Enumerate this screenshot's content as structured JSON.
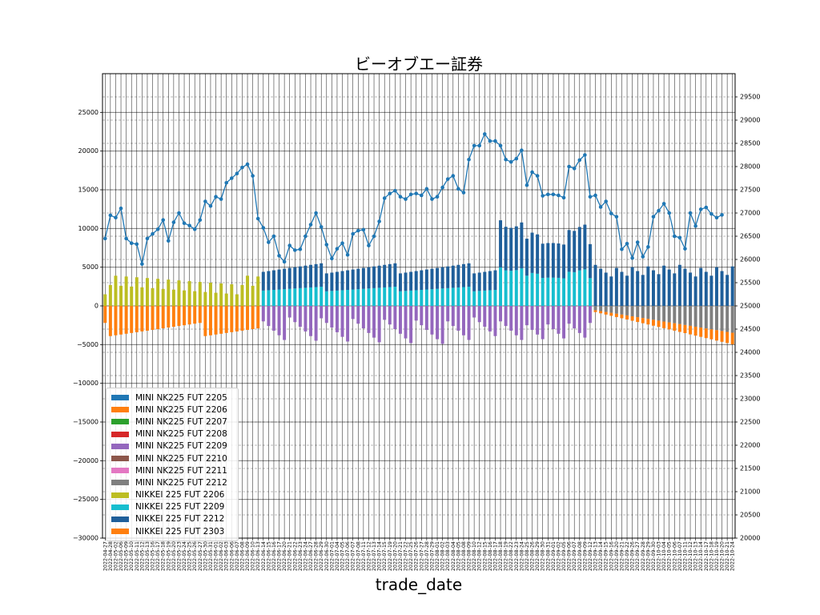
{
  "title": "ビーオブエー証券",
  "chart_data": {
    "type": "bar",
    "title": "ビーオブエー証券",
    "xlabel": "trade_date",
    "ylabel": "",
    "ylim": [
      -30000,
      30000
    ],
    "y2lim": [
      20000,
      30000
    ],
    "grid": true,
    "legend_position": "lower-left",
    "stacked": true,
    "yticks": [
      -30000,
      -25000,
      -20000,
      -15000,
      -10000,
      -5000,
      0,
      5000,
      10000,
      15000,
      20000,
      25000
    ],
    "y2ticks": [
      20000,
      20500,
      21000,
      21500,
      22000,
      22500,
      23000,
      23500,
      24000,
      24500,
      25000,
      25500,
      26000,
      26500,
      27000,
      27500,
      28000,
      28500,
      29000,
      29500
    ],
    "x_start_date": "2022-04-27",
    "x_end_date": "2022-10-24",
    "series": [
      {
        "name": "MINI NK225 FUT 2205",
        "color": "#1f77b4"
      },
      {
        "name": "MINI NK225 FUT 2206",
        "color": "#ff7f0e"
      },
      {
        "name": "MINI NK225 FUT 2207",
        "color": "#2ca02c"
      },
      {
        "name": "MINI NK225 FUT 2208",
        "color": "#d62728"
      },
      {
        "name": "MINI NK225 FUT 2209",
        "color": "#9467bd"
      },
      {
        "name": "MINI NK225 FUT 2210",
        "color": "#8c564b"
      },
      {
        "name": "MINI NK225 FUT 2211",
        "color": "#e377c2"
      },
      {
        "name": "MINI NK225 FUT 2212",
        "color": "#7f7f7f"
      },
      {
        "name": "NIKKEI 225 FUT 2206",
        "color": "#bcbd22"
      },
      {
        "name": "NIKKEI 225 FUT 2209",
        "color": "#17becf"
      },
      {
        "name": "NIKKEI 225 FUT 2212",
        "color": "#1f5f9a"
      },
      {
        "name": "NIKKEI 225 FUT 2303",
        "color": "#ff7f0e"
      }
    ],
    "line_series": {
      "name": "",
      "color": "#1f77b4",
      "values": [
        26450,
        26950,
        26900,
        27100,
        26450,
        26350,
        26330,
        25900,
        26450,
        26550,
        26650,
        26850,
        26400,
        26800,
        27000,
        26780,
        26730,
        26650,
        26850,
        27250,
        27150,
        27350,
        27300,
        27650,
        27750,
        27850,
        27980,
        28050,
        27800,
        26880,
        26680,
        26370,
        26500,
        26080,
        25950,
        26300,
        26200,
        26220,
        26500,
        26750,
        27000,
        26700,
        26320,
        26020,
        26230,
        26350,
        26100,
        26550,
        26620,
        26640,
        26300,
        26500,
        26820,
        27320,
        27420,
        27480,
        27350,
        27300,
        27400,
        27420,
        27380,
        27520,
        27300,
        27350,
        27550,
        27730,
        27800,
        27520,
        27440,
        28150,
        28450,
        28450,
        28700,
        28550,
        28550,
        28450,
        28150,
        28100,
        28170,
        28350,
        27600,
        27880,
        27800,
        27370,
        27400,
        27400,
        27380,
        27330,
        28000,
        27960,
        28140,
        28250,
        27350,
        27380,
        27130,
        27250,
        26990,
        26920,
        26220,
        26340,
        26030,
        26370,
        26060,
        26270,
        26920,
        27050,
        27200,
        27000,
        26500,
        26470,
        26230,
        27000,
        26720,
        27080,
        27120,
        26980,
        26900,
        26960
      ]
    }
  }
}
